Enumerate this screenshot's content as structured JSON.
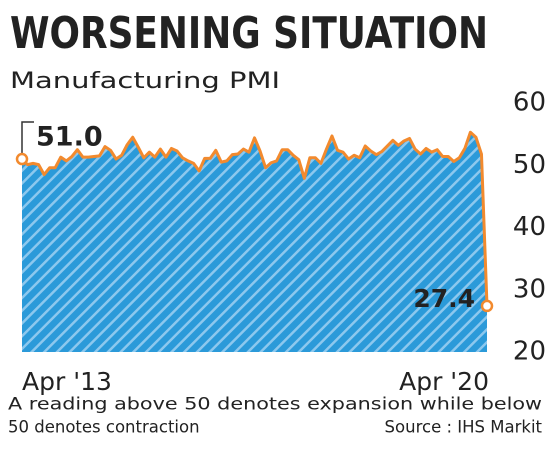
{
  "chart_data": {
    "type": "area",
    "title": "WORSENING SITUATION",
    "subtitle": "Manufacturing PMI",
    "categories": [
      "Apr '13",
      null,
      null,
      null,
      null,
      null,
      null,
      null,
      null,
      null,
      null,
      null,
      null,
      null,
      null,
      null,
      null,
      null,
      null,
      null,
      null,
      null,
      null,
      null,
      null,
      null,
      null,
      null,
      null,
      null,
      null,
      null,
      null,
      null,
      null,
      null,
      null,
      null,
      null,
      null,
      null,
      null,
      null,
      null,
      null,
      null,
      null,
      null,
      null,
      null,
      null,
      null,
      null,
      null,
      null,
      null,
      null,
      null,
      null,
      null,
      null,
      null,
      null,
      null,
      null,
      null,
      null,
      null,
      null,
      null,
      null,
      null,
      null,
      null,
      null,
      null,
      null,
      null,
      null,
      null,
      null,
      null,
      null,
      null,
      "Apr '20"
    ],
    "values": [
      51.0,
      50.1,
      50.3,
      50.1,
      48.5,
      49.6,
      49.6,
      51.3,
      50.7,
      51.4,
      52.5,
      51.3,
      51.3,
      51.4,
      51.5,
      53.0,
      52.4,
      51.0,
      51.6,
      53.3,
      54.5,
      52.9,
      51.2,
      52.1,
      51.3,
      52.6,
      51.3,
      52.7,
      52.3,
      51.2,
      50.7,
      50.3,
      49.1,
      51.1,
      51.1,
      52.4,
      50.5,
      50.7,
      51.7,
      51.8,
      52.6,
      52.1,
      54.4,
      52.3,
      49.6,
      50.4,
      50.7,
      52.5,
      52.5,
      51.6,
      50.9,
      47.9,
      51.2,
      51.2,
      50.3,
      52.6,
      54.7,
      52.4,
      52.1,
      51.0,
      51.6,
      51.2,
      53.1,
      52.3,
      51.7,
      52.2,
      53.1,
      54.0,
      53.2,
      53.9,
      54.3,
      52.6,
      51.8,
      52.7,
      52.1,
      52.5,
      51.4,
      51.4,
      50.6,
      51.2,
      52.7,
      55.3,
      54.5,
      51.8,
      27.4
    ],
    "value_labels": [
      "51.0",
      null,
      null,
      null,
      null,
      null,
      null,
      null,
      null,
      null,
      null,
      null,
      null,
      null,
      null,
      null,
      null,
      null,
      null,
      null,
      null,
      null,
      null,
      null,
      null,
      null,
      null,
      null,
      null,
      null,
      null,
      null,
      null,
      null,
      null,
      null,
      null,
      null,
      null,
      null,
      null,
      null,
      null,
      null,
      null,
      null,
      null,
      null,
      null,
      null,
      null,
      null,
      null,
      null,
      null,
      null,
      null,
      null,
      null,
      null,
      null,
      null,
      null,
      null,
      null,
      null,
      null,
      null,
      null,
      null,
      null,
      null,
      null,
      null,
      null,
      null,
      null,
      null,
      null,
      null,
      null,
      null,
      null,
      null,
      "27.4"
    ],
    "color": "#2b9ad9",
    "line_color": "#f28a2e",
    "ylim": [
      20,
      60
    ],
    "yticks": [
      20,
      30,
      40,
      50,
      60
    ],
    "note": [
      "A reading above 50 denotes expansion while below",
      "50 denotes contraction"
    ],
    "source": "Source : IHS Markit"
  }
}
